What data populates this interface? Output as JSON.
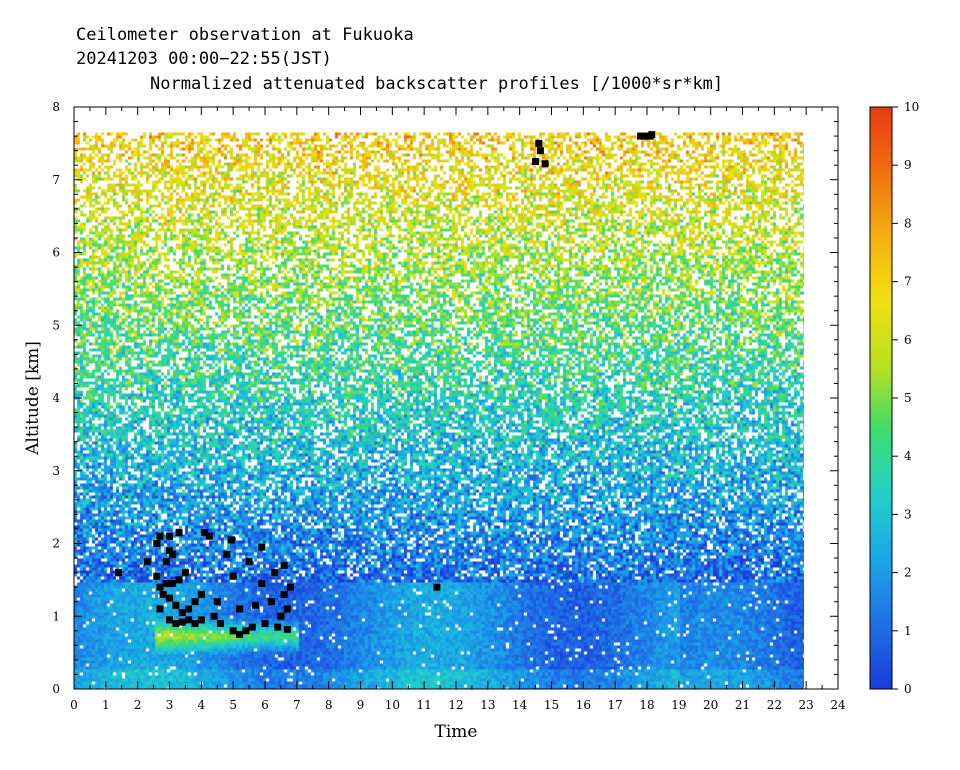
{
  "header": {
    "line1": "Ceilometer observation at Fukuoka",
    "line2": "20241203  00:00−22:55(JST)",
    "line3": "Normalized attenuated backscatter profiles [/1000*sr*km]"
  },
  "chart_data": {
    "type": "heatmap",
    "title": "Normalized attenuated backscatter profiles [/1000*sr*km]",
    "xlabel": "Time",
    "ylabel": "Altitude [km]",
    "xlim": [
      0,
      24
    ],
    "ylim": [
      0,
      8
    ],
    "x_ticks": [
      "0",
      "1",
      "2",
      "3",
      "4",
      "5",
      "6",
      "7",
      "8",
      "9",
      "10",
      "11",
      "12",
      "13",
      "14",
      "15",
      "16",
      "17",
      "18",
      "19",
      "20",
      "21",
      "22",
      "23",
      "24"
    ],
    "y_ticks": [
      "0",
      "1",
      "2",
      "3",
      "4",
      "5",
      "6",
      "7",
      "8"
    ],
    "data_extent": {
      "time_end": 22.92,
      "altitude_top": 7.65
    },
    "colorbar": {
      "min": 0,
      "max": 10,
      "ticks": [
        "0",
        "1",
        "2",
        "3",
        "4",
        "5",
        "6",
        "7",
        "8",
        "9",
        "10"
      ],
      "colors": [
        "#1a3bd8",
        "#1f6fe6",
        "#1aa6e6",
        "#22d0c8",
        "#3ddc6e",
        "#b8e020",
        "#f2e010",
        "#f5b010",
        "#f07010",
        "#e83a10"
      ]
    },
    "features": {
      "boundary_layer_top_km": 1.5,
      "cloud_base_points": [
        {
          "x": 1.4,
          "y": 1.6
        },
        {
          "x": 2.3,
          "y": 1.75
        },
        {
          "x": 2.6,
          "y": 2.0
        },
        {
          "x": 2.7,
          "y": 2.1
        },
        {
          "x": 3.0,
          "y": 2.1
        },
        {
          "x": 3.3,
          "y": 2.15
        },
        {
          "x": 3.0,
          "y": 1.9
        },
        {
          "x": 3.1,
          "y": 1.85
        },
        {
          "x": 2.9,
          "y": 1.75
        },
        {
          "x": 3.5,
          "y": 1.6
        },
        {
          "x": 2.6,
          "y": 1.55
        },
        {
          "x": 2.7,
          "y": 1.4
        },
        {
          "x": 2.9,
          "y": 1.45
        },
        {
          "x": 3.1,
          "y": 1.45
        },
        {
          "x": 3.3,
          "y": 1.5
        },
        {
          "x": 2.8,
          "y": 1.3
        },
        {
          "x": 3.0,
          "y": 1.25
        },
        {
          "x": 3.2,
          "y": 1.15
        },
        {
          "x": 2.7,
          "y": 1.1
        },
        {
          "x": 3.4,
          "y": 1.05
        },
        {
          "x": 3.6,
          "y": 1.1
        },
        {
          "x": 3.8,
          "y": 1.2
        },
        {
          "x": 4.0,
          "y": 1.3
        },
        {
          "x": 3.0,
          "y": 0.95
        },
        {
          "x": 3.2,
          "y": 0.9
        },
        {
          "x": 3.4,
          "y": 0.92
        },
        {
          "x": 3.6,
          "y": 0.95
        },
        {
          "x": 3.8,
          "y": 0.9
        },
        {
          "x": 4.0,
          "y": 0.95
        },
        {
          "x": 4.1,
          "y": 2.15
        },
        {
          "x": 4.25,
          "y": 2.1
        },
        {
          "x": 4.5,
          "y": 1.2
        },
        {
          "x": 4.4,
          "y": 1.0
        },
        {
          "x": 4.6,
          "y": 0.9
        },
        {
          "x": 4.8,
          "y": 1.85
        },
        {
          "x": 4.95,
          "y": 2.05
        },
        {
          "x": 5.0,
          "y": 1.55
        },
        {
          "x": 5.2,
          "y": 1.1
        },
        {
          "x": 5.0,
          "y": 0.8
        },
        {
          "x": 5.2,
          "y": 0.75
        },
        {
          "x": 5.4,
          "y": 0.8
        },
        {
          "x": 5.6,
          "y": 0.85
        },
        {
          "x": 5.5,
          "y": 1.75
        },
        {
          "x": 5.7,
          "y": 1.15
        },
        {
          "x": 5.9,
          "y": 1.95
        },
        {
          "x": 5.9,
          "y": 1.45
        },
        {
          "x": 6.0,
          "y": 0.9
        },
        {
          "x": 6.2,
          "y": 1.2
        },
        {
          "x": 6.3,
          "y": 1.6
        },
        {
          "x": 6.4,
          "y": 0.85
        },
        {
          "x": 6.5,
          "y": 1.0
        },
        {
          "x": 6.6,
          "y": 1.3
        },
        {
          "x": 6.6,
          "y": 1.7
        },
        {
          "x": 6.7,
          "y": 1.1
        },
        {
          "x": 6.7,
          "y": 0.82
        },
        {
          "x": 6.8,
          "y": 1.4
        },
        {
          "x": 11.4,
          "y": 1.4
        },
        {
          "x": 14.5,
          "y": 7.25
        },
        {
          "x": 14.6,
          "y": 7.5
        },
        {
          "x": 14.65,
          "y": 7.4
        },
        {
          "x": 14.8,
          "y": 7.22
        },
        {
          "x": 17.8,
          "y": 7.6
        },
        {
          "x": 17.95,
          "y": 7.6
        },
        {
          "x": 18.1,
          "y": 7.6
        },
        {
          "x": 18.15,
          "y": 7.62
        }
      ]
    }
  }
}
